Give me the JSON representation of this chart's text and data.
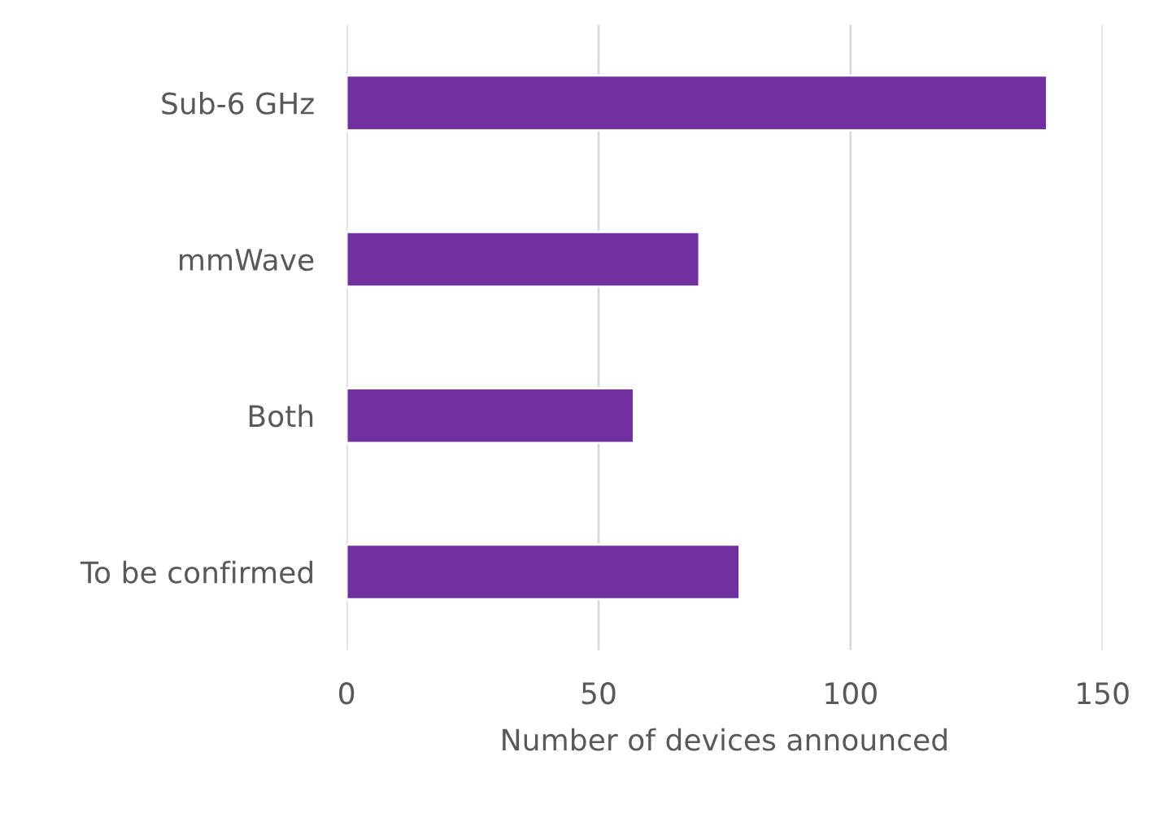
{
  "chart_data": {
    "type": "bar",
    "orientation": "horizontal",
    "xlabel": "Number of devices announced",
    "categories": [
      "Sub-6 GHz",
      "mmWave",
      "Both",
      "To be confirmed"
    ],
    "values": [
      139,
      70,
      57,
      78
    ],
    "color": "#7030a0",
    "xlim": [
      0,
      150
    ],
    "xticks": [
      0,
      50,
      100,
      150
    ],
    "grid": "x",
    "legend": false
  }
}
